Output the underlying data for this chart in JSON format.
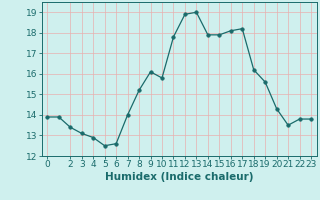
{
  "x": [
    0,
    1,
    2,
    3,
    4,
    5,
    6,
    7,
    8,
    9,
    10,
    11,
    12,
    13,
    14,
    15,
    16,
    17,
    18,
    19,
    20,
    21,
    22,
    23
  ],
  "y": [
    13.9,
    13.9,
    13.4,
    13.1,
    12.9,
    12.5,
    12.6,
    14.0,
    15.2,
    16.1,
    15.8,
    17.8,
    18.9,
    19.0,
    17.9,
    17.9,
    18.1,
    18.2,
    16.2,
    15.6,
    14.3,
    13.5,
    13.8,
    13.8
  ],
  "line_color": "#1a6b6b",
  "marker": "o",
  "marker_size": 2.5,
  "bg_color": "#cff0ee",
  "grid_color": "#aaddda",
  "xlabel": "Humidex (Indice chaleur)",
  "ylim": [
    12,
    19.5
  ],
  "yticks": [
    12,
    13,
    14,
    15,
    16,
    17,
    18,
    19
  ],
  "xlim": [
    -0.5,
    23.5
  ],
  "xticks": [
    0,
    2,
    3,
    4,
    5,
    6,
    7,
    8,
    9,
    10,
    11,
    12,
    13,
    14,
    15,
    16,
    17,
    18,
    19,
    20,
    21,
    22,
    23
  ],
  "tick_label_fontsize": 6.5,
  "xlabel_fontsize": 7.5
}
